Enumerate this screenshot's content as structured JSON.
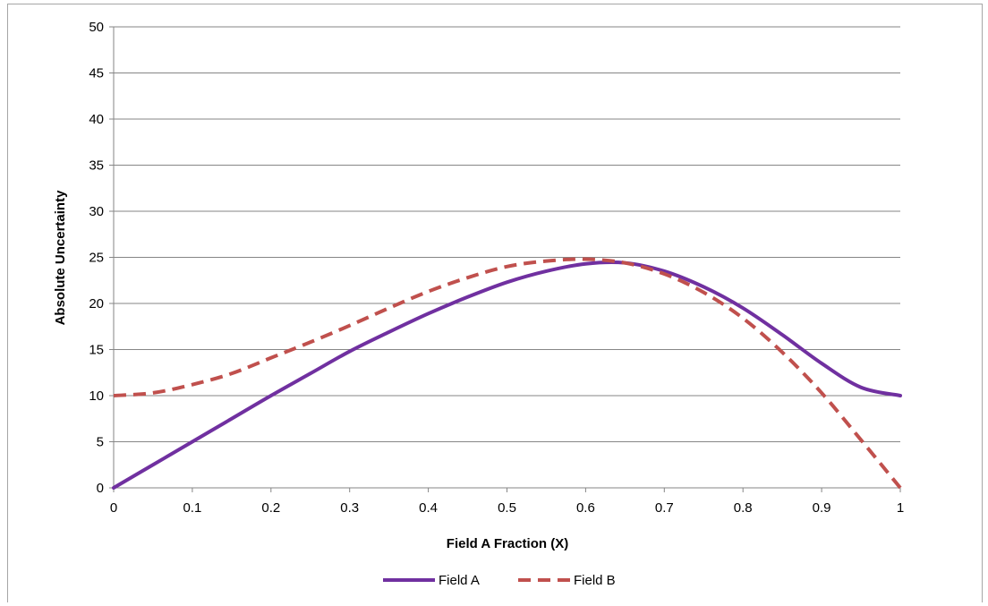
{
  "chart_data": {
    "type": "line",
    "xlabel": "Field A Fraction (X)",
    "ylabel": "Absolute Uncertainty",
    "xlim": [
      0,
      1
    ],
    "ylim": [
      0,
      50
    ],
    "xticks": [
      0,
      0.1,
      0.2,
      0.3,
      0.4,
      0.5,
      0.6,
      0.7,
      0.8,
      0.9,
      1
    ],
    "xtick_labels": [
      "0",
      "0.1",
      "0.2",
      "0.3",
      "0.4",
      "0.5",
      "0.6",
      "0.7",
      "0.8",
      "0.9",
      "1"
    ],
    "yticks": [
      0,
      5,
      10,
      15,
      20,
      25,
      30,
      35,
      40,
      45,
      50
    ],
    "ytick_labels": [
      "0",
      "5",
      "10",
      "15",
      "20",
      "25",
      "30",
      "35",
      "40",
      "45",
      "50"
    ],
    "grid": "horizontal",
    "legend_position": "bottom",
    "x": [
      0,
      0.05,
      0.1,
      0.15,
      0.2,
      0.25,
      0.3,
      0.35,
      0.4,
      0.45,
      0.5,
      0.55,
      0.6,
      0.65,
      0.7,
      0.75,
      0.8,
      0.85,
      0.9,
      0.95,
      1
    ],
    "series": [
      {
        "name": "Field A",
        "color": "#7030a0",
        "style": "solid",
        "values": [
          0,
          2.5,
          5,
          7.5,
          10,
          12.4,
          14.8,
          16.9,
          18.9,
          20.7,
          22.3,
          23.5,
          24.3,
          24.4,
          23.5,
          21.8,
          19.5,
          16.6,
          13.5,
          10.9,
          10
        ]
      },
      {
        "name": "Field B",
        "color": "#c0504d",
        "style": "dashed",
        "values": [
          10,
          10.3,
          11.2,
          12.4,
          14.1,
          15.8,
          17.6,
          19.5,
          21.3,
          22.8,
          24,
          24.6,
          24.8,
          24.4,
          23.2,
          21.2,
          18.4,
          14.7,
          10.3,
          5.2,
          0
        ]
      }
    ]
  },
  "axis": {
    "xlabel": "Field A Fraction (X)",
    "ylabel": "Absolute Uncertainty"
  },
  "legend": {
    "items": [
      {
        "label": "Field A",
        "color": "#7030a0"
      },
      {
        "label": "Field B",
        "color": "#c0504d"
      }
    ]
  }
}
